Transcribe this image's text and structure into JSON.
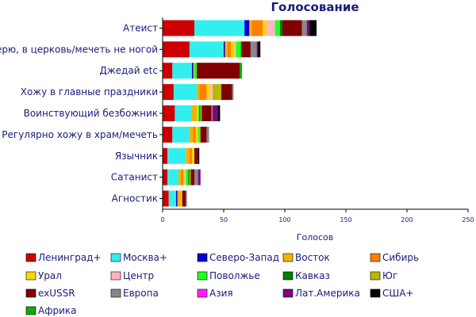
{
  "chart_data": {
    "type": "bar",
    "orientation": "horizontal",
    "stacked": true,
    "title": "Голосование",
    "xlabel": "Голосов",
    "ylabel": "",
    "xlim": [
      0,
      250
    ],
    "xticks": [
      0,
      50,
      100,
      150,
      200,
      250
    ],
    "grid": false,
    "legend_position": "bottom",
    "categories": [
      "Атеист",
      "Верю, в церковь/мечеть не ногой",
      "Джедай etc",
      "Хожу в главные праздники",
      "Воинствующий безбожник",
      "Регулярно хожу в храм/мечеть",
      "Язычник",
      "Сатанист",
      "Агностик"
    ],
    "series": [
      {
        "name": "Ленинград+",
        "color": "#cc0000",
        "values": [
          26,
          22,
          8,
          9,
          10,
          8,
          4,
          4,
          5
        ]
      },
      {
        "name": "Москва+",
        "color": "#33eeee",
        "values": [
          41,
          28,
          16,
          19,
          14,
          14,
          15,
          9,
          6
        ]
      },
      {
        "name": "Северо-Запад",
        "color": "#0000cc",
        "values": [
          4,
          1,
          1,
          0,
          0,
          0,
          0,
          0,
          1
        ]
      },
      {
        "name": "Восток",
        "color": "#f2b200",
        "values": [
          2,
          2,
          1,
          2,
          4,
          3,
          3,
          2,
          3
        ]
      },
      {
        "name": "Сибирь",
        "color": "#ff7f00",
        "values": [
          9,
          3,
          0,
          6,
          0,
          2,
          2,
          2,
          0
        ]
      },
      {
        "name": "Урал",
        "color": "#f8d800",
        "values": [
          3,
          3,
          0,
          3,
          1,
          2,
          2,
          1,
          1
        ]
      },
      {
        "name": "Центр",
        "color": "#ffb6c1",
        "values": [
          7,
          1,
          0,
          2,
          0,
          0,
          0,
          1,
          0
        ]
      },
      {
        "name": "Поволжье",
        "color": "#22ff22",
        "values": [
          4,
          4,
          2,
          0,
          1,
          1,
          0,
          2,
          0
        ]
      },
      {
        "name": "Кавказ",
        "color": "#007f00",
        "values": [
          2,
          1,
          0,
          0,
          1,
          0,
          0,
          1,
          0
        ]
      },
      {
        "name": "Юг",
        "color": "#b8b800",
        "values": [
          0,
          0,
          0,
          7,
          1,
          1,
          0,
          1,
          0
        ]
      },
      {
        "name": "exUSSR",
        "color": "#7f0000",
        "values": [
          16,
          7,
          35,
          9,
          8,
          5,
          3,
          3,
          3
        ]
      },
      {
        "name": "Европа",
        "color": "#888888",
        "values": [
          4,
          5,
          0,
          1,
          1,
          2,
          0,
          3,
          1
        ]
      },
      {
        "name": "Азия",
        "color": "#ff22ff",
        "values": [
          0,
          0,
          0,
          0,
          0,
          0,
          0,
          0,
          0
        ]
      },
      {
        "name": "Лат.Америка",
        "color": "#800080",
        "values": [
          2,
          1,
          0,
          0,
          4,
          0,
          0,
          2,
          0
        ]
      },
      {
        "name": "США+",
        "color": "#000000",
        "values": [
          6,
          2,
          0,
          0,
          2,
          0,
          1,
          0,
          0
        ]
      },
      {
        "name": "Африка",
        "color": "#11aa11",
        "values": [
          0,
          0,
          2,
          0,
          0,
          0,
          0,
          0,
          0
        ]
      }
    ]
  }
}
